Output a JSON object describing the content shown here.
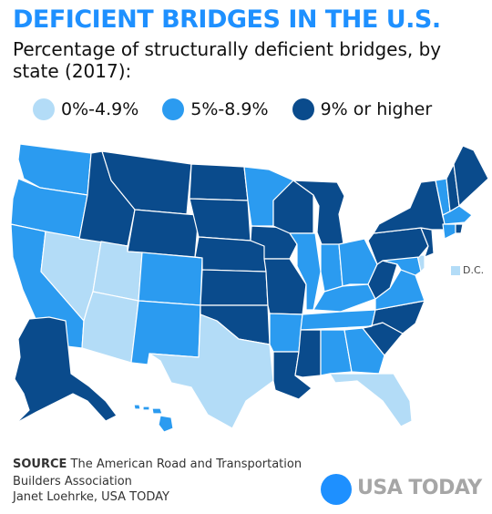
{
  "title": "DEFICIENT BRIDGES IN THE U.S.",
  "subtitle": "Percentage of structurally deficient bridges, by state (2017):",
  "colors": {
    "accent": "#1e90ff",
    "low": "#b3dcf7",
    "mid": "#2b9bf0",
    "high": "#0a4b8c",
    "border": "#ffffff",
    "logo_text": "#a6a6a6"
  },
  "legend": [
    {
      "label": "0%-4.9%",
      "level": "low"
    },
    {
      "label": "5%-8.9%",
      "level": "mid"
    },
    {
      "label": "9% or higher",
      "level": "high"
    }
  ],
  "states": {
    "WA": "mid",
    "OR": "mid",
    "CA": "mid",
    "NV": "low",
    "ID": "high",
    "MT": "high",
    "WY": "high",
    "UT": "low",
    "AZ": "low",
    "CO": "mid",
    "NM": "mid",
    "ND": "high",
    "SD": "high",
    "NE": "high",
    "KS": "high",
    "OK": "high",
    "TX": "low",
    "MN": "mid",
    "IA": "high",
    "MO": "high",
    "AR": "mid",
    "LA": "high",
    "WI": "high",
    "IL": "mid",
    "MI": "high",
    "IN": "mid",
    "OH": "mid",
    "KY": "mid",
    "TN": "mid",
    "MS": "high",
    "AL": "mid",
    "GA": "mid",
    "FL": "low",
    "SC": "high",
    "NC": "high",
    "VA": "mid",
    "WV": "high",
    "PA": "high",
    "NY": "high",
    "VT": "mid",
    "NH": "high",
    "ME": "high",
    "MA": "mid",
    "RI": "high",
    "CT": "mid",
    "NJ": "high",
    "DE": "low",
    "MD": "mid",
    "AK": "high",
    "HI": "mid",
    "DC": "low"
  },
  "dc_label": "D.C.",
  "source": {
    "label": "SOURCE",
    "text": "The American Road and Transportation Builders Association"
  },
  "credit": "Janet Loehrke, USA TODAY",
  "logo": "USA TODAY"
}
